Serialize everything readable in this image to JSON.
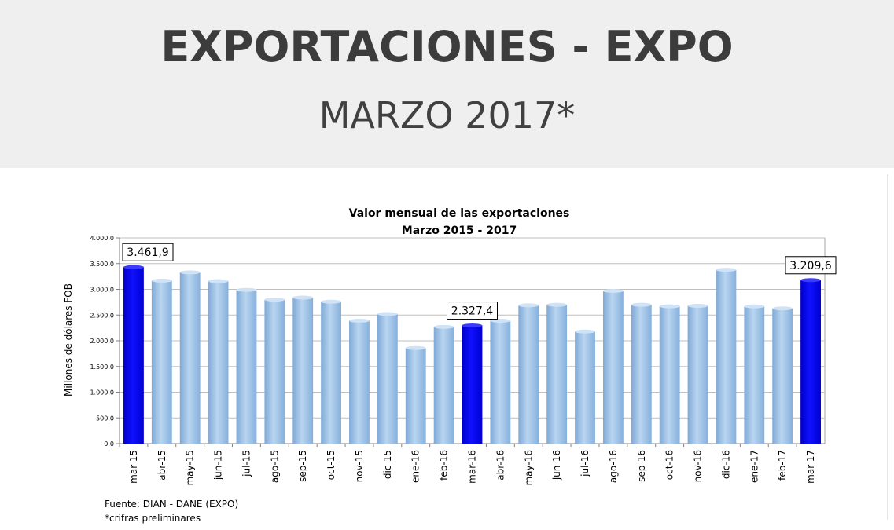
{
  "header": {
    "title": "EXPORTACIONES - EXPO",
    "subtitle": "MARZO 2017*"
  },
  "footer": {
    "source": "Fuente: DIAN - DANE (EXPO)",
    "note": "*crifras preliminares"
  },
  "colors": {
    "bar_normal": "#9dc3e6",
    "bar_highlight": "#0000ff",
    "header_bg": "#efefef"
  },
  "chart_data": {
    "type": "bar",
    "title": "Valor mensual de las exportaciones",
    "subtitle": "Marzo 2015  - 2017",
    "xlabel": "",
    "ylabel": "Millones de dólares FOB",
    "ylim": [
      0,
      4000
    ],
    "yticks": [
      "0,0",
      "500,0",
      "1.000,0",
      "1.500,0",
      "2.000,0",
      "2.500,0",
      "3.000,0",
      "3.500,0",
      "4.000,0"
    ],
    "grid": true,
    "categories": [
      "mar-15",
      "abr-15",
      "may-15",
      "jun-15",
      "jul-15",
      "ago-15",
      "sep-15",
      "oct-15",
      "nov-15",
      "dic-15",
      "ene-16",
      "feb-16",
      "mar-16",
      "abr-16",
      "may-16",
      "jun-16",
      "jul-16",
      "ago-16",
      "sep-16",
      "oct-16",
      "nov-16",
      "dic-16",
      "ene-17",
      "feb-17",
      "mar-17"
    ],
    "values": [
      3461.9,
      3200,
      3360,
      3190,
      3020,
      2830,
      2870,
      2790,
      2420,
      2550,
      1890,
      2300,
      2327.4,
      2420,
      2720,
      2730,
      2210,
      3000,
      2730,
      2700,
      2710,
      3410,
      2700,
      2660,
      3209.6
    ],
    "highlighted": [
      "mar-15",
      "mar-16",
      "mar-17"
    ],
    "data_labels": [
      {
        "category": "mar-15",
        "text": "3.461,9"
      },
      {
        "category": "mar-16",
        "text": "2.327,4"
      },
      {
        "category": "mar-17",
        "text": "3.209,6"
      }
    ]
  }
}
